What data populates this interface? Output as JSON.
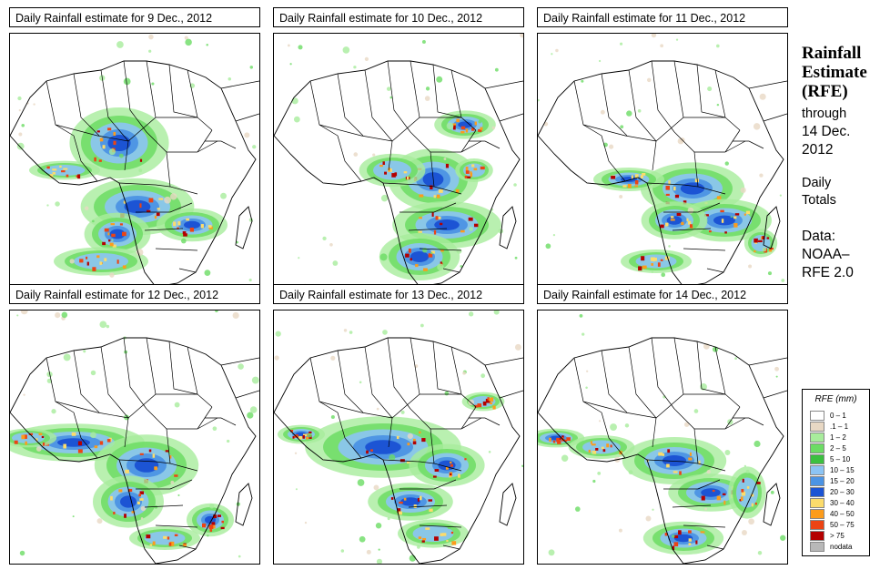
{
  "panels": [
    {
      "title": "Daily Rainfall estimate for  9 Dec., 2012"
    },
    {
      "title": "Daily Rainfall estimate for  10 Dec., 2012"
    },
    {
      "title": "Daily Rainfall estimate for  11 Dec., 2012"
    },
    {
      "title": "Daily Rainfall estimate for  12 Dec., 2012"
    },
    {
      "title": "Daily Rainfall estimate for  13 Dec., 2012"
    },
    {
      "title": "Daily Rainfall estimate for  14 Dec., 2012"
    }
  ],
  "sidebar": {
    "title_line1": "Rainfall",
    "title_line2": "Estimate",
    "title_line3": "(RFE)",
    "through_label": "through",
    "date_line1": "14 Dec.",
    "date_line2": "2012",
    "totals_line1": "Daily",
    "totals_line2": "Totals",
    "data_line1": "Data:",
    "data_line2": "NOAA–",
    "data_line3": "RFE 2.0"
  },
  "legend": {
    "title": "RFE (mm)",
    "items": [
      {
        "label": "0 – 1",
        "color": "#ffffff"
      },
      {
        "label": ".1 – 1",
        "color": "#e8d8c4"
      },
      {
        "label": "1 – 2",
        "color": "#a8ec9c"
      },
      {
        "label": "2 – 5",
        "color": "#6cdc64"
      },
      {
        "label": "5 – 10",
        "color": "#3cc040"
      },
      {
        "label": "10 – 15",
        "color": "#8cc4f4"
      },
      {
        "label": "15 – 20",
        "color": "#4c94e4"
      },
      {
        "label": "20 – 30",
        "color": "#1c54d4"
      },
      {
        "label": "30 – 40",
        "color": "#fcdc6c"
      },
      {
        "label": "40 – 50",
        "color": "#fc9c1c"
      },
      {
        "label": "50 – 75",
        "color": "#ec4414"
      },
      {
        "label": "> 75",
        "color": "#b40000"
      },
      {
        "label": "nodata",
        "color": "#b8b8b8"
      }
    ]
  }
}
